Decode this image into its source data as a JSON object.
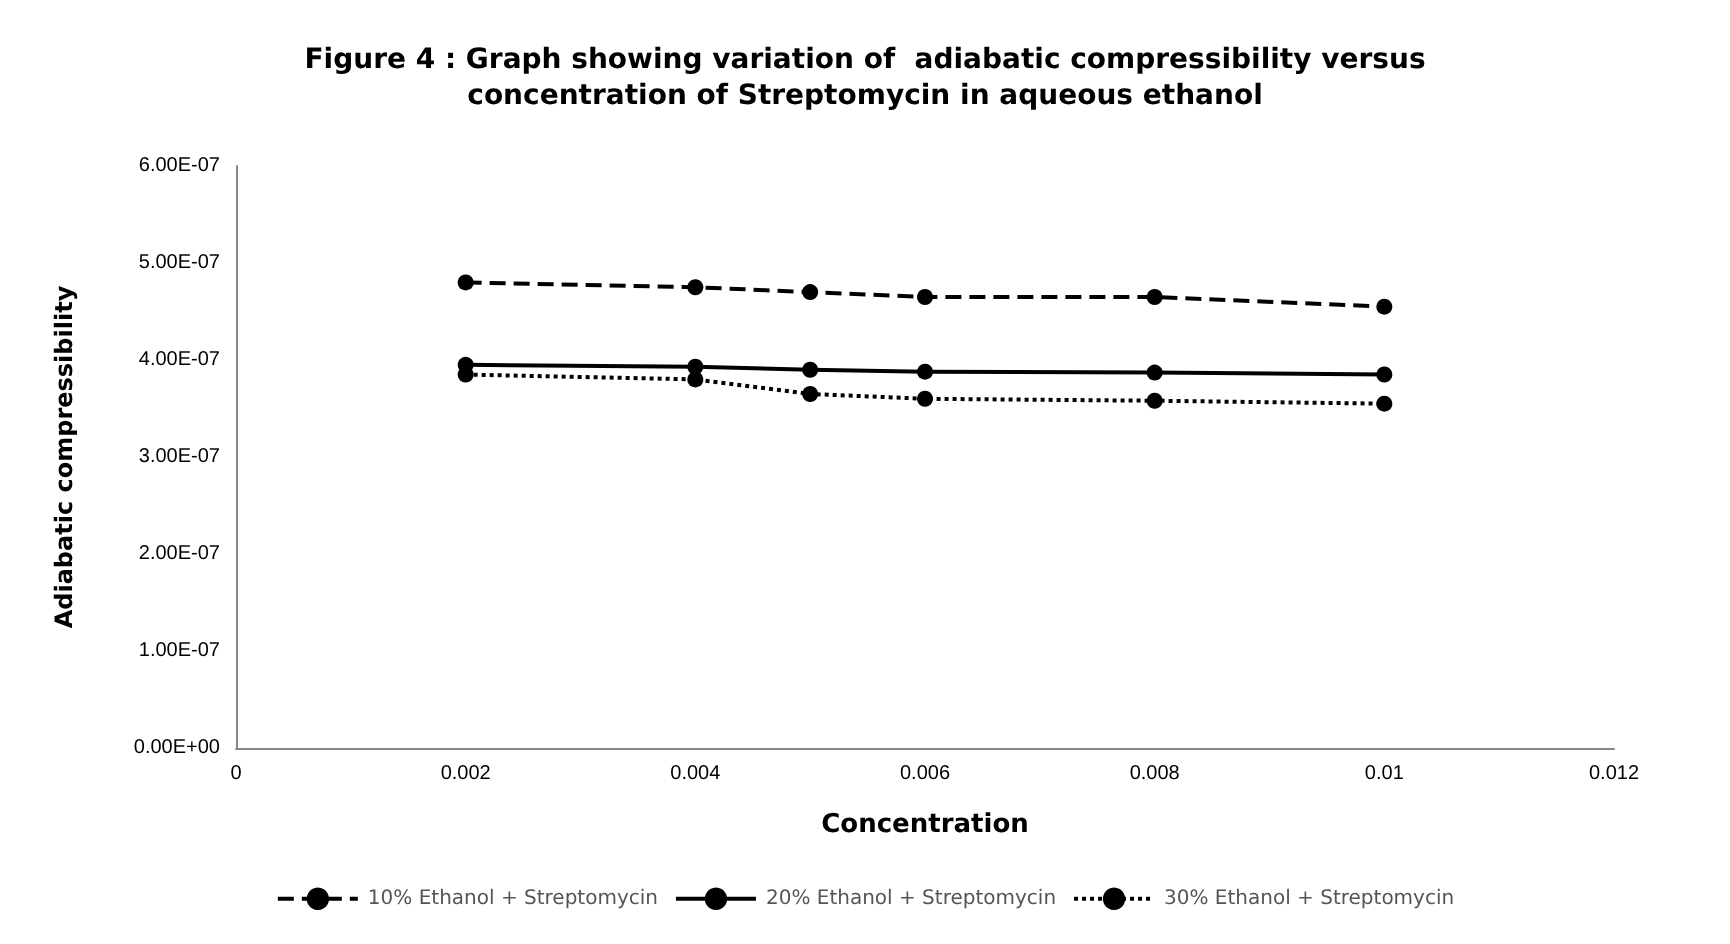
{
  "chart_data": {
    "type": "line",
    "title": "Figure 4 : Graph showing variation of  adiabatic compressibility versus\nconcentration of Streptomycin in aqueous ethanol",
    "xlabel": "Concentration",
    "ylabel": "Adiabatic compressibility",
    "x": [
      0.002,
      0.004,
      0.005,
      0.006,
      0.008,
      0.01
    ],
    "series": [
      {
        "name": "10% Ethanol + Streptomycin",
        "color": "#000000",
        "line_style": "dashed",
        "values": [
          4.8e-07,
          4.75e-07,
          4.7e-07,
          4.65e-07,
          4.65e-07,
          4.55e-07
        ]
      },
      {
        "name": "20% Ethanol + Streptomycin",
        "color": "#000000",
        "line_style": "solid",
        "values": [
          3.95e-07,
          3.93e-07,
          3.9e-07,
          3.88e-07,
          3.87e-07,
          3.85e-07
        ]
      },
      {
        "name": "30% Ethanol + Streptomycin",
        "color": "#000000",
        "line_style": "dotted",
        "values": [
          3.85e-07,
          3.8e-07,
          3.65e-07,
          3.6e-07,
          3.58e-07,
          3.55e-07
        ]
      }
    ],
    "xlim": [
      0,
      0.012
    ],
    "xticks": [
      0,
      0.002,
      0.004,
      0.006,
      0.008,
      0.01,
      0.012
    ],
    "ylim": [
      0,
      6e-07
    ],
    "yticks": [
      {
        "value": 0,
        "label": "0.00E+00"
      },
      {
        "value": 1e-07,
        "label": "1.00E-07"
      },
      {
        "value": 2e-07,
        "label": "2.00E-07"
      },
      {
        "value": 3e-07,
        "label": "3.00E-07"
      },
      {
        "value": 4e-07,
        "label": "4.00E-07"
      },
      {
        "value": 5e-07,
        "label": "5.00E-07"
      },
      {
        "value": 6e-07,
        "label": "6.00E-07"
      }
    ],
    "grid": false,
    "legend": "bottom",
    "marker": "circle"
  }
}
